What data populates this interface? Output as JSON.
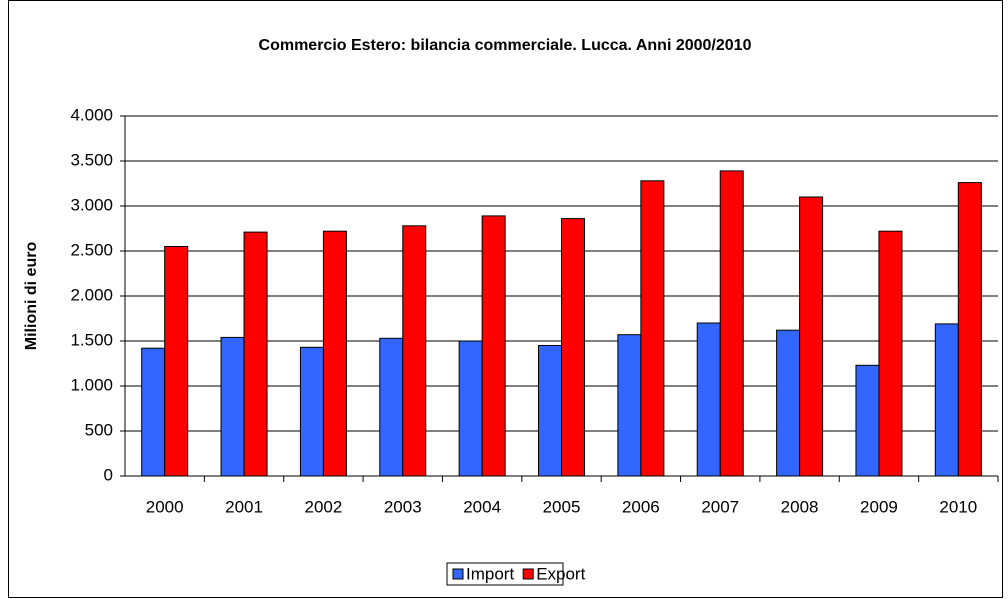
{
  "chart_data": {
    "type": "bar",
    "title": "Commercio Estero: bilancia commerciale. Lucca. Anni 2000/2010",
    "y_label": "Milioni di euro",
    "categories": [
      "2000",
      "2001",
      "2002",
      "2003",
      "2004",
      "2005",
      "2006",
      "2007",
      "2008",
      "2009",
      "2010"
    ],
    "series": [
      {
        "name": "Import",
        "color": "#3366ff",
        "values": [
          1420,
          1540,
          1430,
          1530,
          1500,
          1450,
          1570,
          1700,
          1620,
          1230,
          1690
        ]
      },
      {
        "name": "Export",
        "color": "#ff0000",
        "values": [
          2550,
          2710,
          2720,
          2780,
          2890,
          2860,
          3280,
          3390,
          3100,
          2720,
          3260
        ]
      }
    ],
    "ylim": [
      0,
      4000
    ],
    "yticks": [
      0,
      500,
      {
        "value": 1000,
        "label": "1.000"
      },
      {
        "value": 1500,
        "label": "1.500"
      },
      {
        "value": 2000,
        "label": "2.000"
      },
      {
        "value": 2500,
        "label": "2.500"
      },
      {
        "value": 3000,
        "label": "3.000"
      },
      {
        "value": 3500,
        "label": "3.500"
      },
      {
        "value": 4000,
        "label": "4.000"
      }
    ],
    "grid": true,
    "legend": "bottom"
  }
}
